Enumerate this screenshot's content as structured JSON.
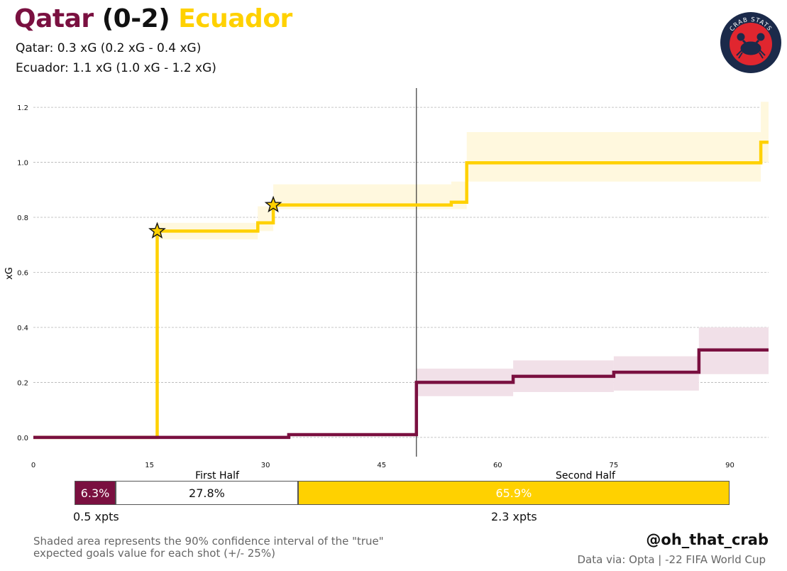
{
  "header": {
    "team_home": "Qatar",
    "score": "(0-2)",
    "team_away": "Ecuador",
    "home_xg_line": "Qatar: 0.3 xG (0.2 xG - 0.4 xG)",
    "away_xg_line": "Ecuador: 1.1 xG (1.0 xG - 1.2 xG)"
  },
  "logo": {
    "text": "CRAB STATS",
    "icon": "crab-icon"
  },
  "colors": {
    "home": "#7a1040",
    "away": "#ffd100",
    "home_band": "#f1e0e8",
    "away_band": "#fff8de"
  },
  "chart_data": {
    "type": "line",
    "ylabel": "xG",
    "xlim": [
      0,
      95
    ],
    "ylim": [
      -0.07,
      1.27
    ],
    "x_ticks": [
      0,
      15,
      30,
      45,
      60,
      75,
      90
    ],
    "y_ticks": [
      0.0,
      0.2,
      0.4,
      0.6,
      0.8,
      1.0,
      1.2
    ],
    "y_tick_labels": [
      "0.0",
      "0.2",
      "0.4",
      "0.6",
      "0.8",
      "1.0",
      "1.2"
    ],
    "grid": "horizontal dashed",
    "half_time_minute": 49.5,
    "half_labels": [
      "First Half",
      "Second Half"
    ],
    "series": [
      {
        "name": "Ecuador",
        "points": [
          [
            0,
            0
          ],
          [
            16,
            0
          ],
          [
            16,
            0.75
          ],
          [
            29,
            0.75
          ],
          [
            29,
            0.78
          ],
          [
            31,
            0.78
          ],
          [
            31,
            0.845
          ],
          [
            54,
            0.845
          ],
          [
            54,
            0.855
          ],
          [
            56,
            0.855
          ],
          [
            56,
            0.998
          ],
          [
            94,
            0.998
          ],
          [
            94,
            1.073
          ],
          [
            95,
            1.073
          ]
        ],
        "band": [
          [
            16,
            0.72,
            0.78
          ],
          [
            29,
            0.75,
            0.84
          ],
          [
            31,
            0.83,
            0.92
          ],
          [
            54,
            0.83,
            0.93
          ],
          [
            56,
            0.93,
            1.11
          ],
          [
            94,
            1.0,
            1.22
          ],
          [
            95,
            1.0,
            1.22
          ]
        ],
        "goals": [
          [
            16,
            0.75
          ],
          [
            31,
            0.845
          ]
        ]
      },
      {
        "name": "Qatar",
        "points": [
          [
            0,
            0
          ],
          [
            33,
            0
          ],
          [
            33,
            0.01
          ],
          [
            49.5,
            0.01
          ],
          [
            49.5,
            0.2
          ],
          [
            62,
            0.2
          ],
          [
            62,
            0.222
          ],
          [
            75,
            0.222
          ],
          [
            75,
            0.237
          ],
          [
            86,
            0.237
          ],
          [
            86,
            0.318
          ],
          [
            95,
            0.318
          ]
        ],
        "band": [
          [
            49.5,
            0.15,
            0.25
          ],
          [
            62,
            0.165,
            0.28
          ],
          [
            75,
            0.17,
            0.295
          ],
          [
            86,
            0.23,
            0.4
          ],
          [
            95,
            0.23,
            0.4
          ]
        ],
        "goals": []
      }
    ]
  },
  "win_probability": {
    "home": "6.3%",
    "draw": "27.8%",
    "away": "65.9%",
    "home_share": 0.063,
    "draw_share": 0.278,
    "away_share": 0.659,
    "home_xpts": "0.5 xpts",
    "away_xpts": "2.3 xpts"
  },
  "footer": {
    "note_line1": "Shaded area represents the 90% confidence interval of the \"true\"",
    "note_line2": "expected goals value for each shot (+/- 25%)",
    "handle": "@oh_that_crab",
    "source": "Data via: Opta | -22 FIFA World Cup"
  }
}
